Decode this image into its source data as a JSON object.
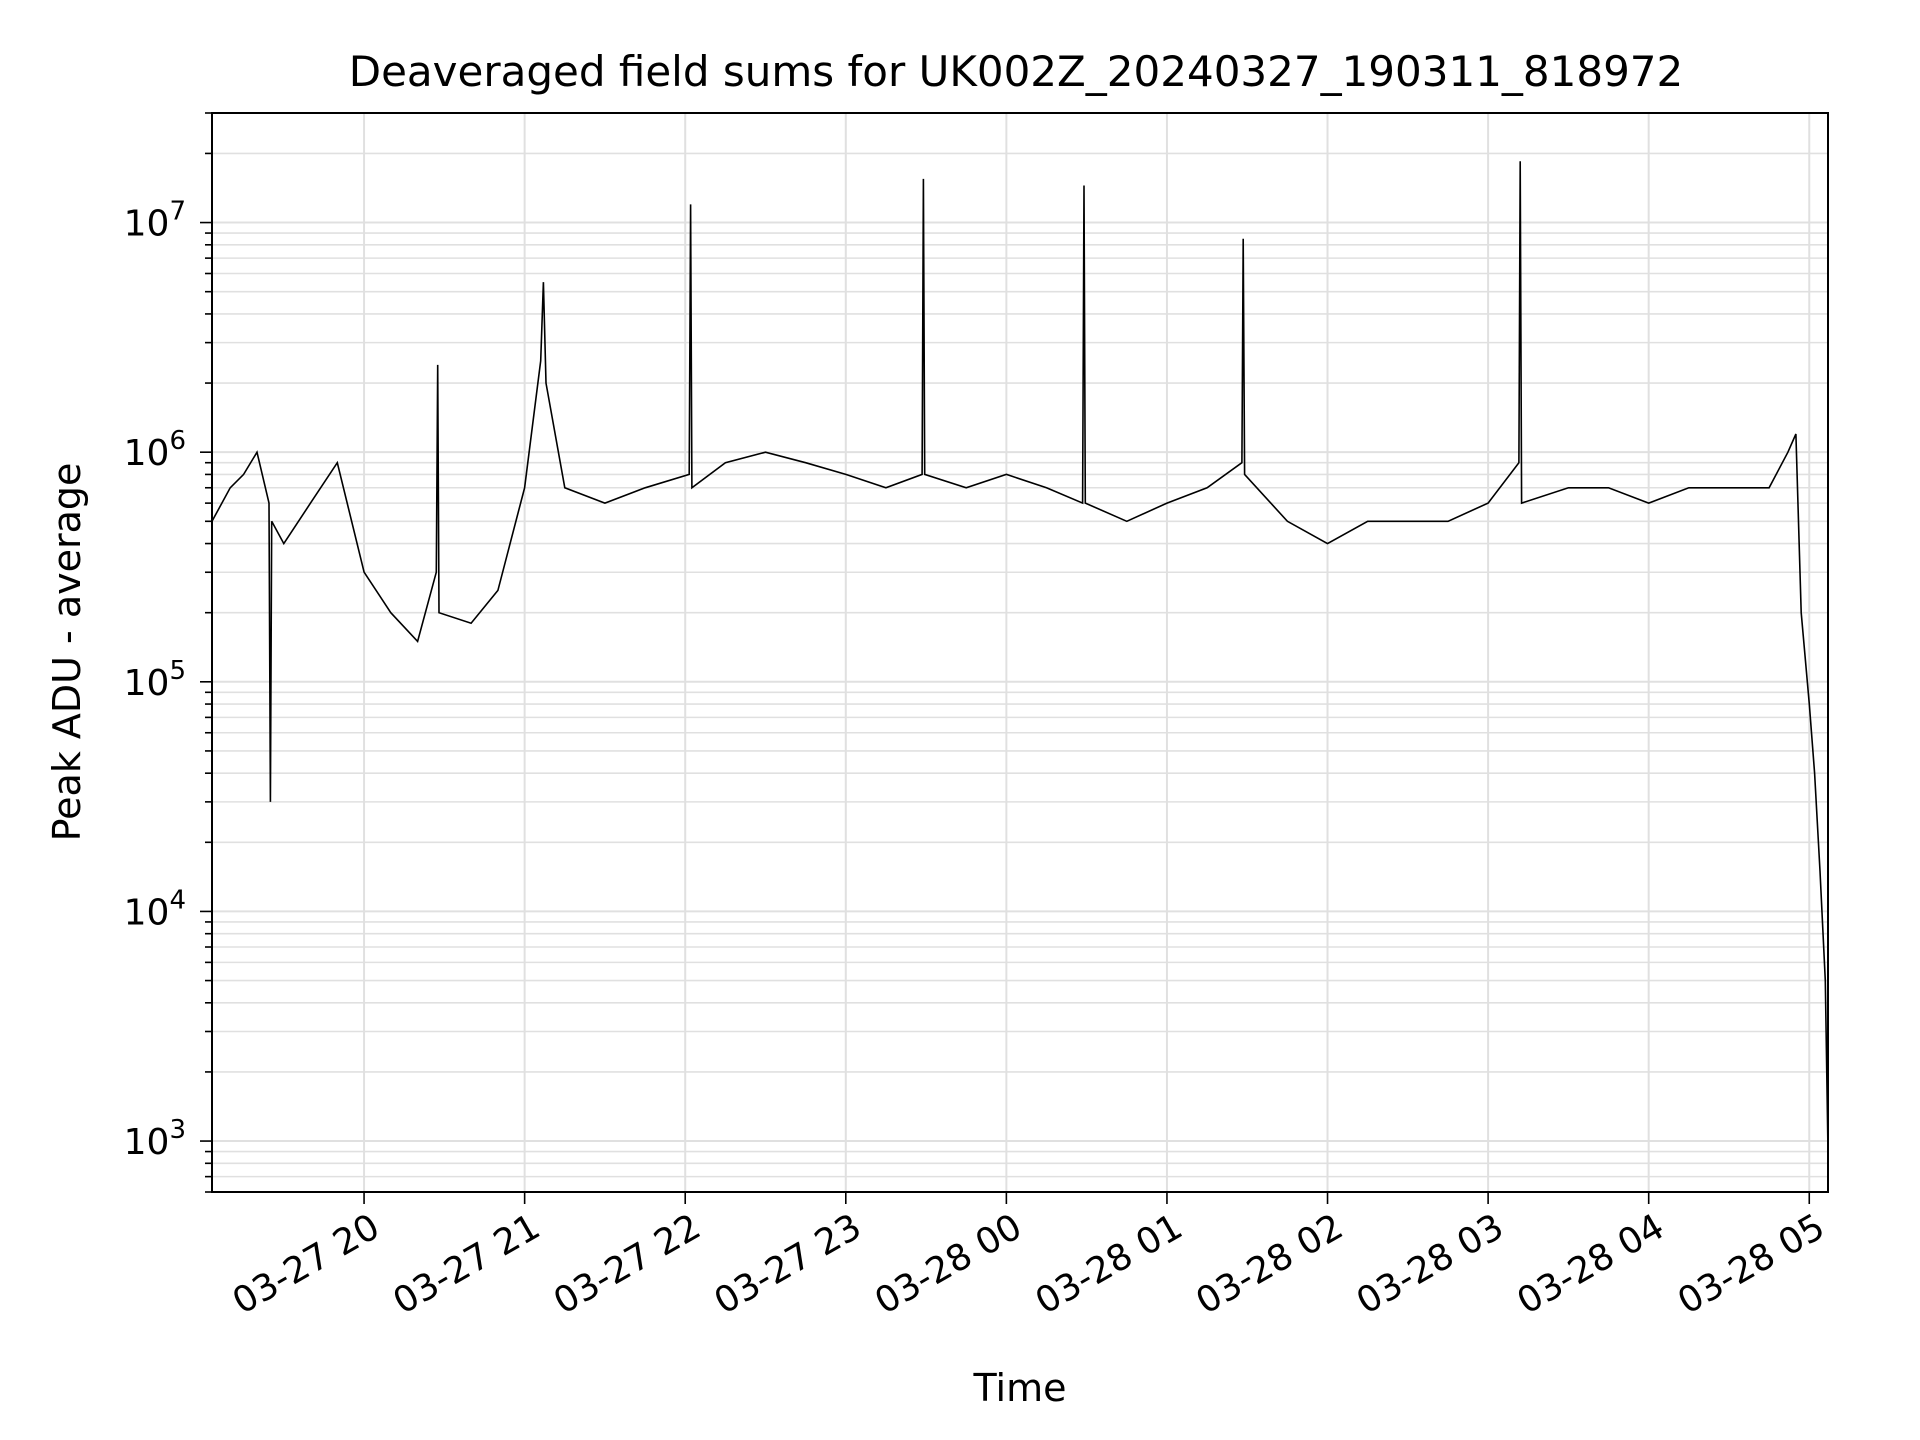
{
  "chart_data": {
    "type": "line",
    "title": "Deaveraged field sums for UK002Z_20240327_190311_818972",
    "xlabel": "Time",
    "ylabel": "Peak ADU - average",
    "y_scale": "log",
    "ylim": [
      600,
      30000000
    ],
    "xlim": [
      "2024-03-27T19:03:11",
      "2024-03-28T05:07:00"
    ],
    "grid": true,
    "line_color": "#000000",
    "grid_color": "#e0e0e0",
    "x_ticks": [
      {
        "value": "2024-03-27T20:00:00",
        "label": "03-27 20"
      },
      {
        "value": "2024-03-27T21:00:00",
        "label": "03-27 21"
      },
      {
        "value": "2024-03-27T22:00:00",
        "label": "03-27 22"
      },
      {
        "value": "2024-03-27T23:00:00",
        "label": "03-27 23"
      },
      {
        "value": "2024-03-28T00:00:00",
        "label": "03-28 00"
      },
      {
        "value": "2024-03-28T01:00:00",
        "label": "03-28 01"
      },
      {
        "value": "2024-03-28T02:00:00",
        "label": "03-28 02"
      },
      {
        "value": "2024-03-28T03:00:00",
        "label": "03-28 03"
      },
      {
        "value": "2024-03-28T04:00:00",
        "label": "03-28 04"
      },
      {
        "value": "2024-03-28T05:00:00",
        "label": "03-28 05"
      }
    ],
    "y_ticks": [
      {
        "value": 1000,
        "base": "10",
        "exp": "3"
      },
      {
        "value": 10000,
        "base": "10",
        "exp": "4"
      },
      {
        "value": 100000,
        "base": "10",
        "exp": "5"
      },
      {
        "value": 1000000,
        "base": "10",
        "exp": "6"
      },
      {
        "value": 10000000,
        "base": "10",
        "exp": "7"
      }
    ],
    "series": [
      {
        "x": [
          "2024-03-27T19:03:11",
          "2024-03-27T19:10:00",
          "2024-03-27T19:15:00",
          "2024-03-27T19:20:00",
          "2024-03-27T19:24:30",
          "2024-03-27T19:25:00",
          "2024-03-27T19:25:30",
          "2024-03-27T19:30:00",
          "2024-03-27T19:40:00",
          "2024-03-27T19:50:00",
          "2024-03-27T20:00:00",
          "2024-03-27T20:10:00",
          "2024-03-27T20:20:00",
          "2024-03-27T20:27:00",
          "2024-03-27T20:27:30",
          "2024-03-27T20:28:00",
          "2024-03-27T20:40:00",
          "2024-03-27T20:50:00",
          "2024-03-27T21:00:00",
          "2024-03-27T21:06:00",
          "2024-03-27T21:07:00",
          "2024-03-27T21:08:00",
          "2024-03-27T21:15:00",
          "2024-03-27T21:30:00",
          "2024-03-27T21:45:00",
          "2024-03-27T22:01:30",
          "2024-03-27T22:02:00",
          "2024-03-27T22:02:30",
          "2024-03-27T22:15:00",
          "2024-03-27T22:30:00",
          "2024-03-27T22:45:00",
          "2024-03-27T23:00:00",
          "2024-03-27T23:15:00",
          "2024-03-27T23:28:30",
          "2024-03-27T23:29:00",
          "2024-03-27T23:29:30",
          "2024-03-27T23:45:00",
          "2024-03-28T00:00:00",
          "2024-03-28T00:15:00",
          "2024-03-28T00:28:30",
          "2024-03-28T00:29:00",
          "2024-03-28T00:29:30",
          "2024-03-28T00:45:00",
          "2024-03-28T01:00:00",
          "2024-03-28T01:15:00",
          "2024-03-28T01:28:00",
          "2024-03-28T01:28:30",
          "2024-03-28T01:29:00",
          "2024-03-28T01:45:00",
          "2024-03-28T02:00:00",
          "2024-03-28T02:15:00",
          "2024-03-28T02:30:00",
          "2024-03-28T02:45:00",
          "2024-03-28T03:00:00",
          "2024-03-28T03:11:30",
          "2024-03-28T03:12:00",
          "2024-03-28T03:12:30",
          "2024-03-28T03:30:00",
          "2024-03-28T03:45:00",
          "2024-03-28T04:00:00",
          "2024-03-28T04:15:00",
          "2024-03-28T04:30:00",
          "2024-03-28T04:45:00",
          "2024-03-28T04:52:00",
          "2024-03-28T04:55:00",
          "2024-03-28T04:57:00",
          "2024-03-28T05:00:00",
          "2024-03-28T05:02:00",
          "2024-03-28T05:04:00",
          "2024-03-28T05:06:00",
          "2024-03-28T05:07:00"
        ],
        "y": [
          500000,
          700000,
          800000,
          1000000,
          600000,
          30000,
          500000,
          400000,
          600000,
          900000,
          300000,
          200000,
          150000,
          300000,
          2400000,
          200000,
          180000,
          250000,
          700000,
          2500000,
          5500000,
          2000000,
          700000,
          600000,
          700000,
          800000,
          12000000,
          700000,
          900000,
          1000000,
          900000,
          800000,
          700000,
          800000,
          15500000,
          800000,
          700000,
          800000,
          700000,
          600000,
          14500000,
          600000,
          500000,
          600000,
          700000,
          900000,
          8500000,
          800000,
          500000,
          400000,
          500000,
          500000,
          500000,
          600000,
          900000,
          18500000,
          600000,
          700000,
          700000,
          600000,
          700000,
          700000,
          700000,
          1000000,
          1200000,
          200000,
          80000,
          40000,
          15000,
          5000,
          900
        ]
      }
    ]
  }
}
